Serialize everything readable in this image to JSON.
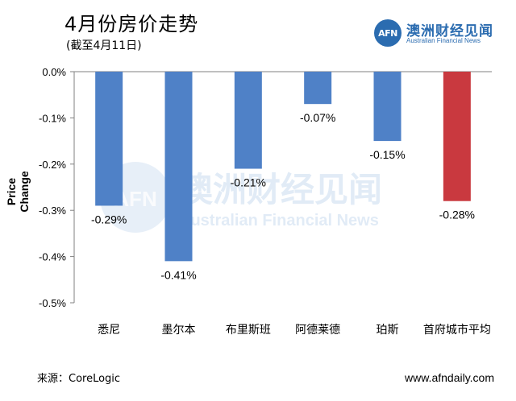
{
  "header": {
    "title": "4月份房价走势",
    "subtitle": "(截至4月11日)"
  },
  "logo": {
    "mark": "AFN",
    "name_cn": "澳洲财经见闻",
    "name_en": "Australian Financial News"
  },
  "watermark": {
    "mark": "AFN",
    "name_cn": "澳洲财经见闻",
    "name_en": "Australian Financial News"
  },
  "footer": {
    "source": "来源：CoreLogic",
    "website": "www.afndaily.com"
  },
  "colors": {
    "bar_default": "#4f81c7",
    "bar_highlight": "#c9393f",
    "axis": "#808080"
  },
  "chart_data": {
    "type": "bar",
    "title": "4月份房价走势",
    "subtitle": "(截至4月11日)",
    "xlabel": "",
    "ylabel": "Price Change",
    "ylim": [
      -0.5,
      0.0
    ],
    "yticks": [
      0.0,
      -0.1,
      -0.2,
      -0.3,
      -0.4,
      -0.5
    ],
    "ytick_labels": [
      "0.0%",
      "-0.1%",
      "-0.2%",
      "-0.3%",
      "-0.4%",
      "-0.5%"
    ],
    "categories": [
      "悉尼",
      "墨尔本",
      "布里斯班",
      "阿德莱德",
      "珀斯",
      "首府城市平均"
    ],
    "values": [
      -0.29,
      -0.41,
      -0.21,
      -0.07,
      -0.15,
      -0.28
    ],
    "data_labels": [
      "-0.29%",
      "-0.41%",
      "-0.21%",
      "-0.07%",
      "-0.15%",
      "-0.28%"
    ],
    "highlight_index": 5,
    "grid": false,
    "legend": "none"
  }
}
